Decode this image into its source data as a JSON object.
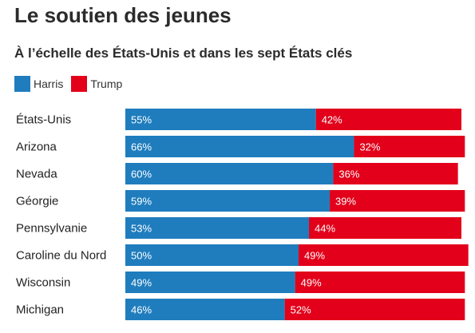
{
  "title": "Le soutien des jeunes",
  "subtitle": "À l’échelle des États-Unis et dans les sept États clés",
  "chart_data": {
    "type": "bar",
    "orientation": "horizontal",
    "stacked": true,
    "categories": [
      "États-Unis",
      "Arizona",
      "Nevada",
      "Géorgie",
      "Pennsylvanie",
      "Caroline du Nord",
      "Wisconsin",
      "Michigan"
    ],
    "series": [
      {
        "name": "Harris",
        "color": "#1f7dbe",
        "values": [
          55,
          66,
          60,
          59,
          53,
          50,
          49,
          46
        ]
      },
      {
        "name": "Trump",
        "color": "#e2001a",
        "values": [
          42,
          32,
          36,
          39,
          44,
          49,
          49,
          52
        ]
      }
    ],
    "value_suffix": "%",
    "xlim": [
      0,
      100
    ],
    "legend_position": "top-left",
    "grid": false
  }
}
